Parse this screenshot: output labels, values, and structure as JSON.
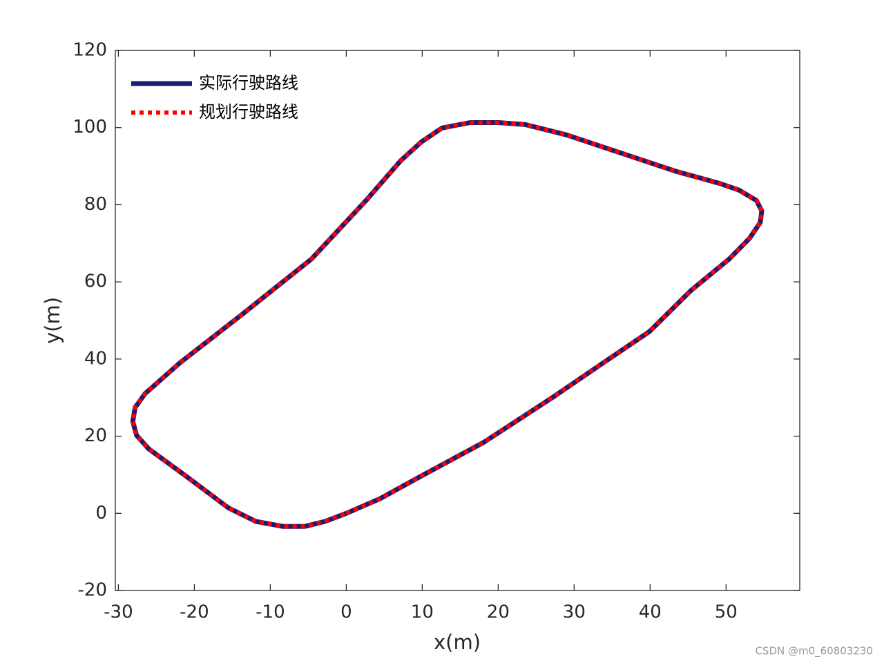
{
  "chart_data": {
    "type": "line",
    "x_label": "x(m)",
    "y_label": "y(m)",
    "x": [
      0,
      4.45,
      10,
      18.1,
      27.2,
      34.5,
      39.9,
      45.4,
      50.4,
      53.1,
      54.5,
      54.7,
      54,
      51.7,
      49,
      43.5,
      36.3,
      29,
      23.5,
      20,
      16.3,
      12.6,
      9.9,
      7.2,
      2.6,
      -4.6,
      -13.7,
      -21.9,
      -26.5,
      -27.8,
      -28.1,
      -27.6,
      -26,
      -21,
      -15.5,
      -11.9,
      -8.3,
      -5.5,
      -2.8,
      0
    ],
    "series": [
      {
        "name": "实际行驶路线",
        "color": "#1c1c72",
        "style": "solid",
        "values": [
          0,
          3.8,
          9.8,
          18.4,
          30.1,
          39.9,
          47.1,
          57.8,
          65.9,
          71.3,
          75.4,
          78.4,
          81.1,
          83.8,
          85.6,
          88.6,
          93.3,
          98.1,
          100.8,
          101.3,
          101.3,
          99.9,
          96.3,
          91.5,
          81.1,
          65.9,
          51.6,
          39,
          31,
          27.4,
          23.8,
          20.2,
          16.7,
          9.5,
          1.4,
          -2.1,
          -3.4,
          -3.4,
          -2.1,
          0
        ]
      },
      {
        "name": "规划行驶路线",
        "color": "#ff0000",
        "style": "dotted",
        "values": [
          0,
          3.8,
          9.8,
          18.4,
          30.1,
          39.9,
          47.1,
          57.8,
          65.9,
          71.3,
          75.4,
          78.4,
          81.1,
          83.8,
          85.6,
          88.6,
          93.3,
          98.1,
          100.8,
          101.3,
          101.3,
          99.9,
          96.3,
          91.5,
          81.1,
          65.9,
          51.6,
          39,
          31,
          27.4,
          23.8,
          20.2,
          16.7,
          9.5,
          1.4,
          -2.1,
          -3.4,
          -3.4,
          -2.1,
          0
        ]
      }
    ],
    "xlim": [
      -30.4,
      59.7
    ],
    "xticks": [
      -30,
      -20,
      -10,
      0,
      10,
      20,
      30,
      40,
      50
    ],
    "ylim": [
      -20,
      120
    ],
    "yticks": [
      -20,
      0,
      20,
      40,
      60,
      80,
      100,
      120
    ],
    "legend": "upper-left",
    "grid": false
  },
  "watermark": "CSDN @m0_60803230"
}
